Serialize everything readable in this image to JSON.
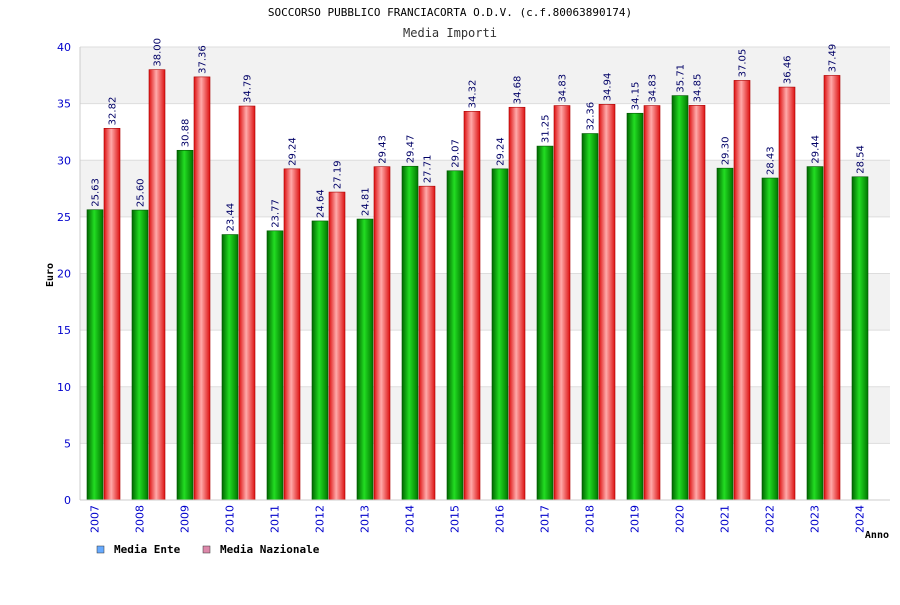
{
  "chart_data": {
    "type": "bar",
    "title": "SOCCORSO PUBBLICO FRANCIACORTA O.D.V. (c.f.80063890174)",
    "subtitle": "Media Importi",
    "xlabel": "Anno",
    "ylabel": "Euro",
    "ylim": [
      0,
      40
    ],
    "yticks": [
      "0",
      "5",
      "10",
      "15",
      "20",
      "25",
      "30",
      "35",
      "40"
    ],
    "grid": true,
    "legend_position": "bottom-left",
    "categories": [
      "2007",
      "2008",
      "2009",
      "2010",
      "2011",
      "2012",
      "2013",
      "2014",
      "2015",
      "2016",
      "2017",
      "2018",
      "2019",
      "2020",
      "2021",
      "2022",
      "2023",
      "2024"
    ],
    "series": [
      {
        "name": "Media Ente",
        "color": "#00aa00",
        "legend_color": "#66aaff",
        "values": [
          25.63,
          25.6,
          30.88,
          23.44,
          23.77,
          24.64,
          24.81,
          29.47,
          29.07,
          29.24,
          31.25,
          32.36,
          34.15,
          35.71,
          29.3,
          28.43,
          29.44,
          28.54
        ],
        "labels": [
          "25.63",
          "25.60",
          "30.88",
          "23.44",
          "23.77",
          "24.64",
          "24.81",
          "29.47",
          "29.07",
          "29.24",
          "31.25",
          "32.36",
          "34.15",
          "35.71",
          "29.30",
          "28.43",
          "29.44",
          "28.54"
        ]
      },
      {
        "name": "Media Nazionale",
        "color": "#ee2222",
        "legend_color": "#dd88aa",
        "values": [
          32.82,
          38.0,
          37.36,
          34.79,
          29.24,
          27.19,
          29.43,
          27.71,
          34.32,
          34.68,
          34.83,
          34.94,
          34.83,
          34.85,
          37.05,
          36.46,
          37.49,
          null
        ],
        "labels": [
          "32.82",
          "38.00",
          "37.36",
          "34.79",
          "29.24",
          "27.19",
          "29.43",
          "27.71",
          "34.32",
          "34.68",
          "34.83",
          "34.94",
          "34.83",
          "34.85",
          "37.05",
          "36.46",
          "37.49",
          null
        ]
      }
    ]
  }
}
